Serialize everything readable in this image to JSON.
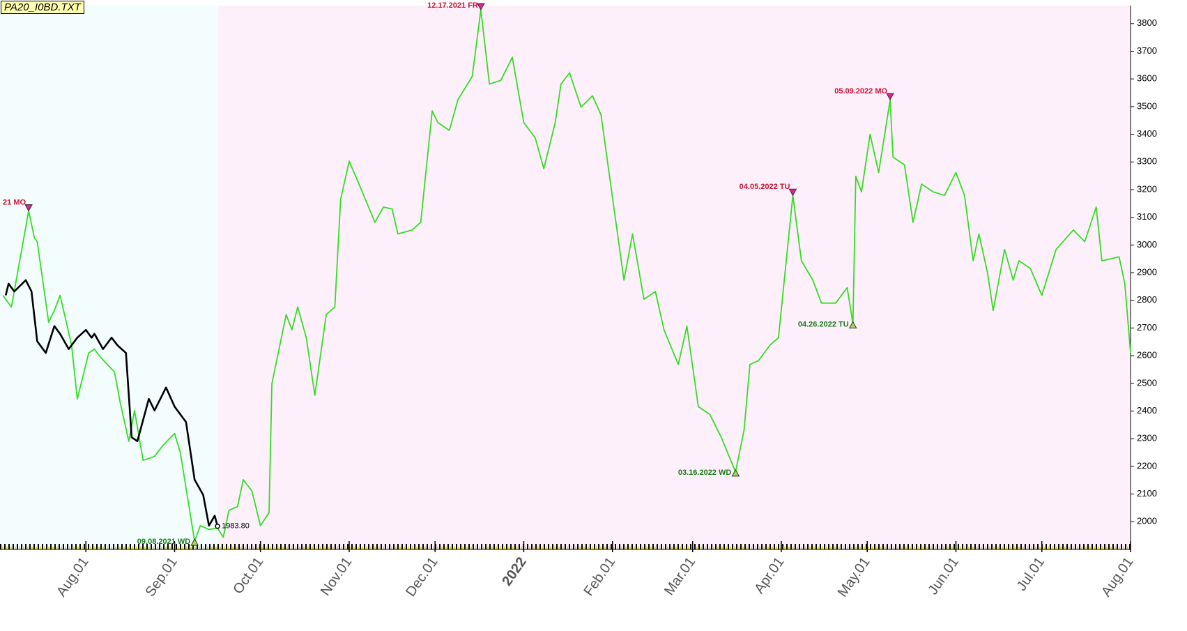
{
  "chart_data": {
    "type": "line",
    "title": "PA20_I0BD.TXT",
    "xlim": [
      "2021-07-02",
      "2022-08-01"
    ],
    "ylim": [
      1900,
      3865
    ],
    "yticks": [
      2000,
      2100,
      2200,
      2300,
      2400,
      2500,
      2600,
      2700,
      2800,
      2900,
      3000,
      3100,
      3200,
      3300,
      3400,
      3500,
      3600,
      3700,
      3800
    ],
    "xticks": [
      {
        "value": "2021-08-01",
        "label": "Aug.01"
      },
      {
        "value": "2021-09-01",
        "label": "Sep.01"
      },
      {
        "value": "2021-10-01",
        "label": "Oct.01"
      },
      {
        "value": "2021-11-01",
        "label": "Nov.01"
      },
      {
        "value": "2021-12-01",
        "label": "Dec.01"
      },
      {
        "value": "2022-01-01",
        "label": "2022",
        "color": "#7a0a0a"
      },
      {
        "value": "2022-02-01",
        "label": "Feb.01"
      },
      {
        "value": "2022-03-01",
        "label": "Mar.01"
      },
      {
        "value": "2022-04-01",
        "label": "Apr.01"
      },
      {
        "value": "2022-05-01",
        "label": "May.01"
      },
      {
        "value": "2022-06-01",
        "label": "Jun.01"
      },
      {
        "value": "2022-07-01",
        "label": "Jul.01"
      },
      {
        "value": "2022-08-01",
        "label": "Aug.01"
      }
    ],
    "series": [
      {
        "color": "#33dd22",
        "x": [
          "2021-07-03",
          "2021-07-06",
          "2021-07-12",
          "2021-07-14",
          "2021-07-15",
          "2021-07-19",
          "2021-07-21",
          "2021-07-23",
          "2021-07-27",
          "2021-07-29",
          "2021-08-02",
          "2021-08-04",
          "2021-08-06",
          "2021-08-11",
          "2021-08-13",
          "2021-08-16",
          "2021-08-18",
          "2021-08-21",
          "2021-08-25",
          "2021-08-28",
          "2021-09-01",
          "2021-09-03",
          "2021-09-08",
          "2021-09-10",
          "2021-09-13",
          "2021-09-16",
          "2021-09-18",
          "2021-09-20",
          "2021-09-23",
          "2021-09-25",
          "2021-09-28",
          "2021-10-01",
          "2021-10-04",
          "2021-10-05",
          "2021-10-10",
          "2021-10-12",
          "2021-10-14",
          "2021-10-17",
          "2021-10-20",
          "2021-10-24",
          "2021-10-27",
          "2021-10-29",
          "2021-11-01",
          "2021-11-05",
          "2021-11-10",
          "2021-11-13",
          "2021-11-16",
          "2021-11-18",
          "2021-11-23",
          "2021-11-26",
          "2021-11-30",
          "2021-12-02",
          "2021-12-06",
          "2021-12-09",
          "2021-12-14",
          "2021-12-17",
          "2021-12-20",
          "2021-12-24",
          "2021-12-28",
          "2022-01-01",
          "2022-01-05",
          "2022-01-08",
          "2022-01-12",
          "2022-01-14",
          "2022-01-17",
          "2022-01-21",
          "2022-01-25",
          "2022-01-28",
          "2022-02-02",
          "2022-02-05",
          "2022-02-08",
          "2022-02-12",
          "2022-02-16",
          "2022-02-19",
          "2022-02-24",
          "2022-02-27",
          "2022-03-03",
          "2022-03-07",
          "2022-03-11",
          "2022-03-16",
          "2022-03-19",
          "2022-03-21",
          "2022-03-24",
          "2022-03-28",
          "2022-03-31",
          "2022-04-05",
          "2022-04-08",
          "2022-04-12",
          "2022-04-15",
          "2022-04-20",
          "2022-04-24",
          "2022-04-26",
          "2022-04-27",
          "2022-04-29",
          "2022-05-02",
          "2022-05-05",
          "2022-05-09",
          "2022-05-10",
          "2022-05-14",
          "2022-05-17",
          "2022-05-20",
          "2022-05-24",
          "2022-05-28",
          "2022-06-01",
          "2022-06-04",
          "2022-06-07",
          "2022-06-09",
          "2022-06-12",
          "2022-06-14",
          "2022-06-18",
          "2022-06-21",
          "2022-06-23",
          "2022-06-27",
          "2022-07-01",
          "2022-07-06",
          "2022-07-12",
          "2022-07-16",
          "2022-07-20",
          "2022-07-22",
          "2022-07-28",
          "2022-07-30",
          "2022-08-01"
        ],
        "values": [
          2818,
          2776,
          3123,
          3026,
          3012,
          2721,
          2763,
          2818,
          2638,
          2444,
          2610,
          2624,
          2596,
          2541,
          2430,
          2291,
          2402,
          2222,
          2236,
          2277,
          2319,
          2250,
          1930,
          1986,
          1972,
          1977,
          1944,
          2041,
          2055,
          2152,
          2111,
          1986,
          2033,
          2499,
          2749,
          2693,
          2776,
          2665,
          2457,
          2749,
          2776,
          3165,
          3303,
          3206,
          3082,
          3137,
          3130,
          3040,
          3054,
          3082,
          3484,
          3442,
          3414,
          3525,
          3609,
          3850,
          3581,
          3595,
          3678,
          3442,
          3387,
          3276,
          3442,
          3581,
          3622,
          3498,
          3539,
          3470,
          3096,
          2873,
          3040,
          2804,
          2832,
          2693,
          2568,
          2707,
          2416,
          2388,
          2305,
          2180,
          2333,
          2568,
          2582,
          2638,
          2665,
          3179,
          2943,
          2873,
          2790,
          2790,
          2846,
          2715,
          3248,
          3192,
          3400,
          3262,
          3525,
          3317,
          3290,
          3082,
          3220,
          3192,
          3179,
          3262,
          3179,
          2943,
          3040,
          2901,
          2763,
          2984,
          2873,
          2943,
          2915,
          2818,
          2984,
          3054,
          3012,
          3137,
          2943,
          2957,
          2860,
          2610
        ]
      },
      {
        "color": "#000000",
        "x": [
          "2021-07-04",
          "2021-07-05",
          "2021-07-07",
          "2021-07-11",
          "2021-07-13",
          "2021-07-15",
          "2021-07-18",
          "2021-07-21",
          "2021-07-23",
          "2021-07-26",
          "2021-07-29",
          "2021-08-01",
          "2021-08-03",
          "2021-08-04",
          "2021-08-07",
          "2021-08-10",
          "2021-08-12",
          "2021-08-15",
          "2021-08-17",
          "2021-08-19",
          "2021-08-23",
          "2021-08-25",
          "2021-08-29",
          "2021-09-01",
          "2021-09-05",
          "2021-09-08",
          "2021-09-11",
          "2021-09-13",
          "2021-09-15",
          "2021-09-16"
        ],
        "values": [
          2818,
          2860,
          2832,
          2873,
          2832,
          2652,
          2610,
          2707,
          2679,
          2624,
          2665,
          2693,
          2665,
          2679,
          2624,
          2665,
          2638,
          2610,
          2305,
          2291,
          2444,
          2402,
          2485,
          2416,
          2360,
          2152,
          2097,
          1986,
          2022,
          1983.8
        ],
        "value_labels": [
          null,
          null,
          null,
          null,
          null,
          null,
          null,
          null,
          null,
          null,
          null,
          null,
          null,
          null,
          null,
          null,
          null,
          null,
          null,
          null,
          null,
          null,
          null,
          null,
          null,
          null,
          null,
          null,
          null,
          "1983.80"
        ]
      }
    ],
    "annotations": [
      {
        "text": "21 MO",
        "x": "2021-07-12",
        "y": 3123,
        "color": "#cc1133",
        "marker": "down"
      },
      {
        "text": "09.08.2021 WD",
        "x": "2021-09-08",
        "y": 1930,
        "color": "#1a7a1a",
        "marker": "up"
      },
      {
        "text": "12.17.2021 FR",
        "x": "2021-12-17",
        "y": 3850,
        "color": "#cc1133",
        "marker": "down"
      },
      {
        "text": "03.16.2022 WD",
        "x": "2022-03-16",
        "y": 2180,
        "color": "#1a7a1a",
        "marker": "up"
      },
      {
        "text": "04.05.2022 TU",
        "x": "2022-04-05",
        "y": 3179,
        "color": "#cc1133",
        "marker": "down"
      },
      {
        "text": "04.26.2022 TU",
        "x": "2022-04-26",
        "y": 2715,
        "color": "#1a7a1a",
        "marker": "up"
      },
      {
        "text": "05.09.2022 MO",
        "x": "2022-05-09",
        "y": 3525,
        "color": "#cc1133",
        "marker": "down"
      }
    ]
  }
}
